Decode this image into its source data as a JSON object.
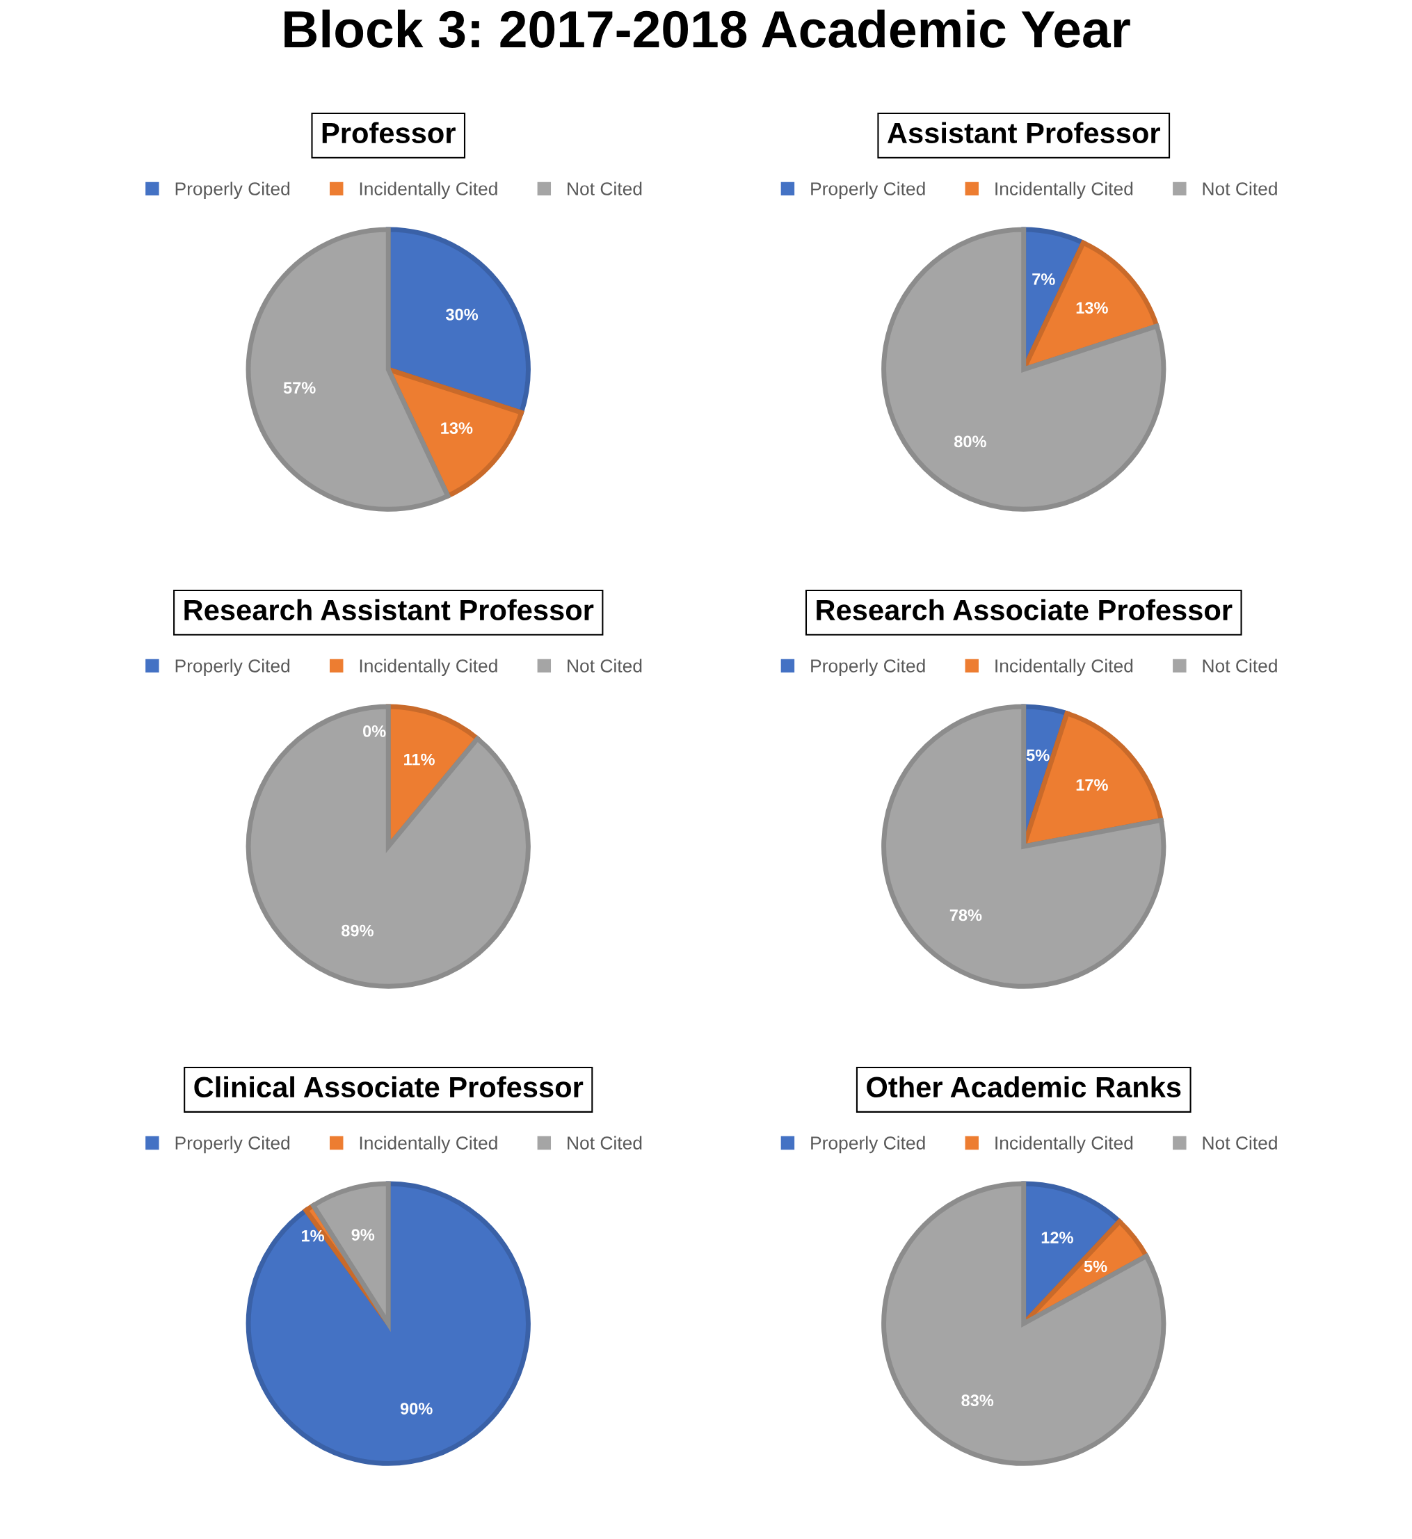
{
  "chart_data": [
    {
      "type": "pie",
      "title": "Professor",
      "annotations": [
        "Block 3: 2017-2018 Academic Year"
      ],
      "categories": [
        "Properly Cited",
        "Incidentally Cited",
        "Not Cited"
      ],
      "values": [
        30,
        13,
        57
      ],
      "value_labels": [
        "30%",
        "13%",
        "57%"
      ],
      "colors": [
        "#4472c4",
        "#ed7d31",
        "#a5a5a5"
      ],
      "legend": "top"
    },
    {
      "type": "pie",
      "title": "Assistant Professor",
      "categories": [
        "Properly Cited",
        "Incidentally Cited",
        "Not Cited"
      ],
      "values": [
        7,
        13,
        80
      ],
      "value_labels": [
        "7%",
        "13%",
        "80%"
      ],
      "colors": [
        "#4472c4",
        "#ed7d31",
        "#a5a5a5"
      ],
      "legend": "top"
    },
    {
      "type": "pie",
      "title": "Research Assistant Professor",
      "categories": [
        "Properly Cited",
        "Incidentally Cited",
        "Not Cited"
      ],
      "values": [
        0,
        11,
        89
      ],
      "value_labels": [
        "0%",
        "11%",
        "89%"
      ],
      "colors": [
        "#4472c4",
        "#ed7d31",
        "#a5a5a5"
      ],
      "legend": "top"
    },
    {
      "type": "pie",
      "title": "Research Associate Professor",
      "categories": [
        "Properly Cited",
        "Incidentally Cited",
        "Not Cited"
      ],
      "values": [
        5,
        17,
        78
      ],
      "value_labels": [
        "5%",
        "17%",
        "78%"
      ],
      "colors": [
        "#4472c4",
        "#ed7d31",
        "#a5a5a5"
      ],
      "legend": "top"
    },
    {
      "type": "pie",
      "title": "Clinical Associate Professor",
      "categories": [
        "Properly Cited",
        "Incidentally Cited",
        "Not Cited"
      ],
      "values": [
        90,
        1,
        9
      ],
      "value_labels": [
        "90%",
        "1%",
        "9%"
      ],
      "colors": [
        "#4472c4",
        "#ed7d31",
        "#a5a5a5"
      ],
      "legend": "top"
    },
    {
      "type": "pie",
      "title": "Other Academic Ranks",
      "categories": [
        "Properly Cited",
        "Incidentally Cited",
        "Not Cited"
      ],
      "values": [
        12,
        5,
        83
      ],
      "value_labels": [
        "12%",
        "5%",
        "83%"
      ],
      "colors": [
        "#4472c4",
        "#ed7d31",
        "#a5a5a5"
      ],
      "legend": "top"
    }
  ]
}
